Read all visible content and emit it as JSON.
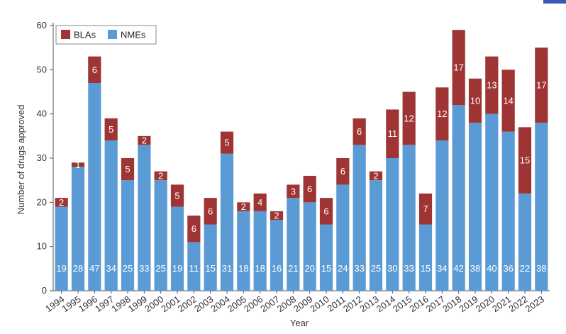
{
  "chart_data": {
    "type": "bar",
    "stacked": true,
    "title": "",
    "xlabel": "Year",
    "ylabel": "Number of drugs approved",
    "ylim": [
      0,
      60
    ],
    "yticks": [
      0,
      10,
      20,
      30,
      40,
      50,
      60
    ],
    "grid": false,
    "legend_position": "top-left",
    "categories": [
      "1994",
      "1995",
      "1996",
      "1997",
      "1998",
      "1999",
      "2000",
      "2001",
      "2002",
      "2003",
      "2004",
      "2005",
      "2006",
      "2007",
      "2008",
      "2009",
      "2010",
      "2011",
      "2012",
      "2013",
      "2014",
      "2015",
      "2016",
      "2017",
      "2018",
      "2019",
      "2020",
      "2021",
      "2022",
      "2023"
    ],
    "series": [
      {
        "name": "NMEs",
        "color": "#5b9bd5",
        "values": [
          19,
          28,
          47,
          34,
          25,
          33,
          25,
          19,
          11,
          15,
          31,
          18,
          18,
          16,
          21,
          20,
          15,
          24,
          33,
          25,
          30,
          33,
          15,
          34,
          42,
          38,
          40,
          36,
          22,
          38
        ]
      },
      {
        "name": "BLAs",
        "color": "#9e3434",
        "values": [
          2,
          1,
          6,
          5,
          5,
          2,
          2,
          5,
          6,
          6,
          5,
          2,
          4,
          2,
          3,
          6,
          6,
          6,
          6,
          2,
          11,
          12,
          7,
          12,
          17,
          10,
          13,
          14,
          15,
          17
        ]
      }
    ],
    "legend_order": [
      "BLAs",
      "NMEs"
    ]
  },
  "colors": {
    "accent": "#3a57b5"
  }
}
